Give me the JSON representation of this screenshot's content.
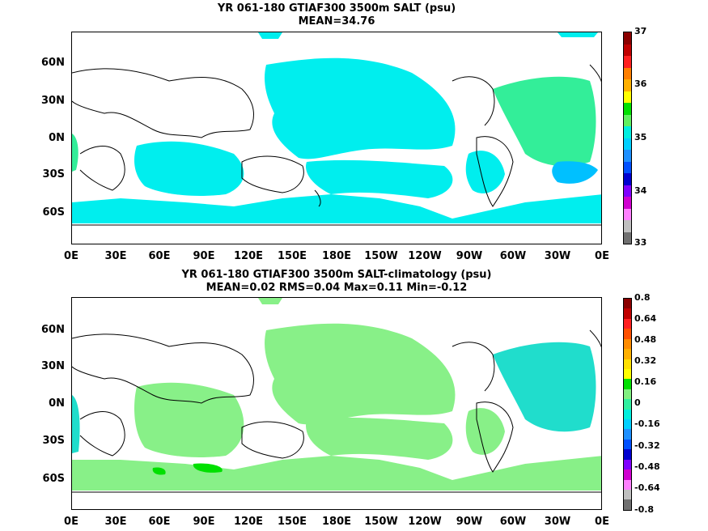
{
  "panel1": {
    "title": "YR 061-180 GTIAF300 3500m SALT (psu)",
    "subtitle": "MEAN=34.76",
    "y_ticks": [
      "60N",
      "30N",
      "0N",
      "30S",
      "60S"
    ],
    "x_ticks": [
      "0E",
      "30E",
      "60E",
      "90E",
      "120E",
      "150E",
      "180E",
      "150W",
      "120W",
      "90W",
      "60W",
      "30W",
      "0E"
    ],
    "colorbar_labels": [
      "37",
      "36",
      "35",
      "34",
      "33"
    ],
    "colorbar_colors": [
      "#8b0000",
      "#c00000",
      "#ff2020",
      "#ff7f00",
      "#ffb000",
      "#ffff00",
      "#00e000",
      "#60f060",
      "#00eee0",
      "#00d0ff",
      "#1e90ff",
      "#0050ff",
      "#0000d0",
      "#8000ff",
      "#d000d0",
      "#ff80ff",
      "#c0c0c0",
      "#707070"
    ],
    "fill_colors": {
      "main": "#00eeee",
      "warm": "#33ee99",
      "cool": "#00c0ff"
    }
  },
  "panel2": {
    "title": "YR 061-180 GTIAF300 3500m SALT-climatology (psu)",
    "subtitle": "MEAN=0.02   RMS=0.04   Max=0.11   Min=-0.12",
    "y_ticks": [
      "60N",
      "30N",
      "0N",
      "30S",
      "60S"
    ],
    "x_ticks": [
      "0E",
      "30E",
      "60E",
      "90E",
      "120E",
      "150E",
      "180E",
      "150W",
      "120W",
      "90W",
      "60W",
      "30W",
      "0E"
    ],
    "colorbar_labels": [
      "0.8",
      "0.64",
      "0.48",
      "0.32",
      "0.16",
      "0",
      "-0.16",
      "-0.32",
      "-0.48",
      "-0.64",
      "-0.8"
    ],
    "colorbar_colors": [
      "#8b0000",
      "#c00000",
      "#ff2020",
      "#ff5000",
      "#ff8c00",
      "#ffb000",
      "#ffe000",
      "#ffff00",
      "#00e000",
      "#80f080",
      "#30f0a0",
      "#00eedd",
      "#00d0ff",
      "#1e90ff",
      "#0050ff",
      "#0000d0",
      "#8000ff",
      "#d000d0",
      "#ff80ff",
      "#c0c0c0",
      "#707070"
    ],
    "fill_colors": {
      "main": "#88f088",
      "warm": "#00e000",
      "cool": "#20ddcc"
    }
  }
}
